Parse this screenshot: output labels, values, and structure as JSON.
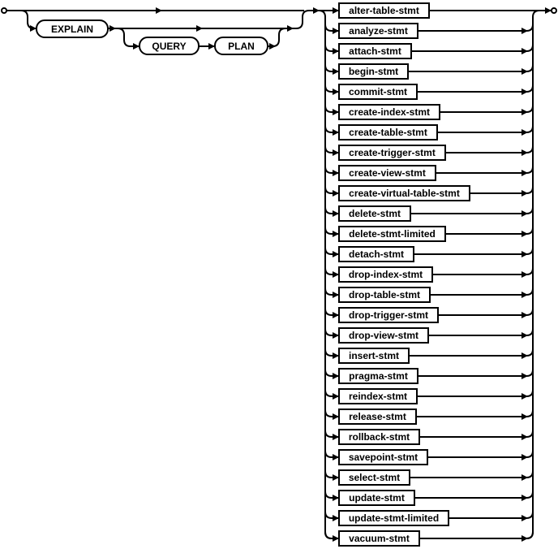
{
  "keywords": {
    "explain": "EXPLAIN",
    "query": "QUERY",
    "plan": "PLAN"
  },
  "statements": [
    "alter-table-stmt",
    "analyze-stmt",
    "attach-stmt",
    "begin-stmt",
    "commit-stmt",
    "create-index-stmt",
    "create-table-stmt",
    "create-trigger-stmt",
    "create-view-stmt",
    "create-virtual-table-stmt",
    "delete-stmt",
    "delete-stmt-limited",
    "detach-stmt",
    "drop-index-stmt",
    "drop-table-stmt",
    "drop-trigger-stmt",
    "drop-view-stmt",
    "insert-stmt",
    "pragma-stmt",
    "reindex-stmt",
    "release-stmt",
    "rollback-stmt",
    "savepoint-stmt",
    "select-stmt",
    "update-stmt",
    "update-stmt-limited",
    "vacuum-stmt"
  ]
}
